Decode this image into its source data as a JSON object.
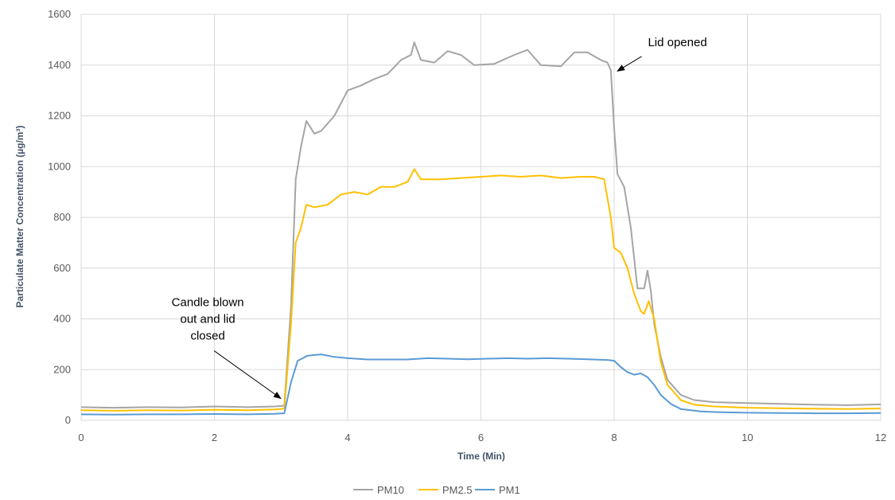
{
  "chart_data": {
    "type": "line",
    "title": "",
    "xlabel": "Time (Min)",
    "ylabel": "Particulate Matter Concentration (µg/m³)",
    "xlim": [
      0,
      12
    ],
    "ylim": [
      0,
      1600
    ],
    "xticks": [
      0,
      2,
      4,
      6,
      8,
      10,
      12
    ],
    "yticks": [
      0,
      200,
      400,
      600,
      800,
      1000,
      1200,
      1400,
      1600
    ],
    "grid": true,
    "legend_position": "bottom",
    "annotations": [
      {
        "lines": [
          "Lid opened"
        ],
        "point_x": 8.0,
        "point_y": 1370,
        "text_x": 8.95,
        "text_y": 1475
      },
      {
        "lines": [
          "Candle blown",
          "out and lid",
          "closed"
        ],
        "point_x": 2.95,
        "point_y": 80,
        "text_x": 1.9,
        "text_y": 450
      }
    ],
    "series": [
      {
        "name": "PM10",
        "color": "#a5a5a5",
        "points": [
          [
            0,
            52
          ],
          [
            0.5,
            50
          ],
          [
            1,
            52
          ],
          [
            1.5,
            51
          ],
          [
            2,
            55
          ],
          [
            2.5,
            52
          ],
          [
            2.9,
            55
          ],
          [
            3.05,
            58
          ],
          [
            3.15,
            450
          ],
          [
            3.22,
            950
          ],
          [
            3.3,
            1080
          ],
          [
            3.38,
            1180
          ],
          [
            3.5,
            1130
          ],
          [
            3.6,
            1140
          ],
          [
            3.8,
            1200
          ],
          [
            4,
            1300
          ],
          [
            4.2,
            1320
          ],
          [
            4.4,
            1345
          ],
          [
            4.6,
            1365
          ],
          [
            4.8,
            1420
          ],
          [
            4.95,
            1440
          ],
          [
            5.0,
            1490
          ],
          [
            5.1,
            1420
          ],
          [
            5.3,
            1410
          ],
          [
            5.5,
            1455
          ],
          [
            5.7,
            1440
          ],
          [
            5.9,
            1400
          ],
          [
            6.2,
            1405
          ],
          [
            6.5,
            1440
          ],
          [
            6.7,
            1460
          ],
          [
            6.9,
            1400
          ],
          [
            7.2,
            1395
          ],
          [
            7.4,
            1450
          ],
          [
            7.6,
            1450
          ],
          [
            7.8,
            1420
          ],
          [
            7.9,
            1410
          ],
          [
            7.95,
            1380
          ],
          [
            8.0,
            1150
          ],
          [
            8.05,
            970
          ],
          [
            8.15,
            920
          ],
          [
            8.25,
            760
          ],
          [
            8.35,
            520
          ],
          [
            8.45,
            520
          ],
          [
            8.5,
            590
          ],
          [
            8.55,
            510
          ],
          [
            8.6,
            380
          ],
          [
            8.7,
            250
          ],
          [
            8.8,
            160
          ],
          [
            9.0,
            100
          ],
          [
            9.2,
            80
          ],
          [
            9.5,
            72
          ],
          [
            10,
            68
          ],
          [
            10.5,
            65
          ],
          [
            11,
            62
          ],
          [
            11.5,
            60
          ],
          [
            12,
            63
          ]
        ]
      },
      {
        "name": "PM2.5",
        "color": "#ffc000",
        "points": [
          [
            0,
            40
          ],
          [
            0.5,
            38
          ],
          [
            1,
            40
          ],
          [
            1.5,
            39
          ],
          [
            2,
            42
          ],
          [
            2.5,
            40
          ],
          [
            2.9,
            43
          ],
          [
            3.05,
            46
          ],
          [
            3.15,
            380
          ],
          [
            3.22,
            700
          ],
          [
            3.3,
            760
          ],
          [
            3.38,
            850
          ],
          [
            3.5,
            840
          ],
          [
            3.7,
            850
          ],
          [
            3.9,
            890
          ],
          [
            4.1,
            900
          ],
          [
            4.3,
            890
          ],
          [
            4.5,
            920
          ],
          [
            4.7,
            920
          ],
          [
            4.9,
            940
          ],
          [
            5.0,
            990
          ],
          [
            5.1,
            950
          ],
          [
            5.4,
            950
          ],
          [
            5.7,
            955
          ],
          [
            6.0,
            960
          ],
          [
            6.3,
            965
          ],
          [
            6.6,
            960
          ],
          [
            6.9,
            965
          ],
          [
            7.2,
            955
          ],
          [
            7.5,
            960
          ],
          [
            7.7,
            960
          ],
          [
            7.85,
            950
          ],
          [
            7.95,
            800
          ],
          [
            8.0,
            680
          ],
          [
            8.1,
            660
          ],
          [
            8.2,
            600
          ],
          [
            8.3,
            500
          ],
          [
            8.4,
            430
          ],
          [
            8.45,
            420
          ],
          [
            8.52,
            470
          ],
          [
            8.6,
            400
          ],
          [
            8.7,
            230
          ],
          [
            8.8,
            140
          ],
          [
            9.0,
            80
          ],
          [
            9.2,
            62
          ],
          [
            9.5,
            55
          ],
          [
            10,
            50
          ],
          [
            10.5,
            48
          ],
          [
            11,
            46
          ],
          [
            11.5,
            45
          ],
          [
            12,
            47
          ]
        ]
      },
      {
        "name": "PM1",
        "color": "#5b9bd5",
        "points": [
          [
            0,
            24
          ],
          [
            0.5,
            23
          ],
          [
            1,
            24
          ],
          [
            1.5,
            24
          ],
          [
            2,
            25
          ],
          [
            2.5,
            24
          ],
          [
            2.9,
            26
          ],
          [
            3.05,
            28
          ],
          [
            3.15,
            150
          ],
          [
            3.25,
            235
          ],
          [
            3.4,
            255
          ],
          [
            3.6,
            260
          ],
          [
            3.8,
            250
          ],
          [
            4.0,
            245
          ],
          [
            4.3,
            240
          ],
          [
            4.6,
            240
          ],
          [
            4.9,
            240
          ],
          [
            5.2,
            245
          ],
          [
            5.5,
            243
          ],
          [
            5.8,
            241
          ],
          [
            6.1,
            243
          ],
          [
            6.4,
            245
          ],
          [
            6.7,
            243
          ],
          [
            7.0,
            245
          ],
          [
            7.3,
            243
          ],
          [
            7.6,
            241
          ],
          [
            7.9,
            238
          ],
          [
            8.0,
            235
          ],
          [
            8.1,
            210
          ],
          [
            8.2,
            190
          ],
          [
            8.3,
            180
          ],
          [
            8.4,
            185
          ],
          [
            8.5,
            170
          ],
          [
            8.6,
            140
          ],
          [
            8.7,
            100
          ],
          [
            8.85,
            65
          ],
          [
            9.0,
            45
          ],
          [
            9.3,
            35
          ],
          [
            9.6,
            32
          ],
          [
            10,
            30
          ],
          [
            10.5,
            29
          ],
          [
            11,
            28
          ],
          [
            11.5,
            28
          ],
          [
            12,
            29
          ]
        ]
      }
    ]
  }
}
